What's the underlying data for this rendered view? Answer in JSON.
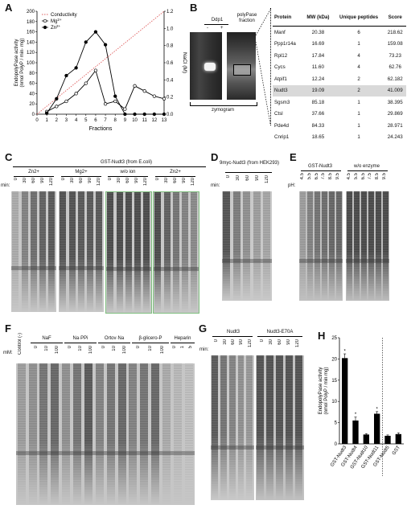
{
  "panels": {
    "A": "A",
    "B": "B",
    "C": "C",
    "D": "D",
    "E": "E",
    "F": "F",
    "G": "G",
    "H": "H"
  },
  "panelA": {
    "legend": [
      "Conductivity",
      "Mg2+",
      "Zn2+"
    ],
    "ylabel_left": "EndopolyPase activity (nmol PolyP / min· mg)",
    "ylabel_right": "NaCl (M)",
    "xlabel": "Fractions",
    "left_ticks": [
      "0",
      "20",
      "40",
      "60",
      "80",
      "100",
      "120",
      "140",
      "160",
      "180",
      "200"
    ],
    "right_ticks": [
      "0.0",
      "0.2",
      "0.4",
      "0.6",
      "0.8",
      "1.0",
      "1.2"
    ],
    "x_ticks": [
      "0",
      "1",
      "2",
      "3",
      "4",
      "5",
      "6",
      "7",
      "8",
      "9",
      "10",
      "11",
      "12",
      "13"
    ]
  },
  "chart_data": [
    {
      "type": "line",
      "title": "",
      "xlabel": "Fractions",
      "ylabel": "EndopolyPase activity (nmol PolyP / min· mg)",
      "xlim": [
        0,
        13
      ],
      "ylim": [
        0,
        200
      ],
      "y2lim": [
        0,
        1.2
      ],
      "x": [
        1,
        2,
        3,
        4,
        5,
        6,
        7,
        8,
        9,
        10,
        11,
        12,
        13
      ],
      "series": [
        {
          "name": "Conductivity",
          "axis": "right",
          "x": [
            0,
            13
          ],
          "values": [
            0,
            1.2
          ],
          "style": "dotted",
          "color": "#e06060"
        },
        {
          "name": "Mg2+",
          "axis": "left",
          "values": [
            5,
            15,
            25,
            40,
            60,
            85,
            20,
            25,
            10,
            55,
            45,
            35,
            30
          ],
          "color": "#000",
          "marker": "open"
        },
        {
          "name": "Zn2+",
          "axis": "left",
          "values": [
            2,
            30,
            75,
            90,
            140,
            160,
            135,
            35,
            0,
            0,
            0,
            0,
            0
          ],
          "color": "#000",
          "marker": "filled"
        }
      ]
    },
    {
      "type": "bar",
      "title": "",
      "ylabel": "EndopolyPase activity (nmol PolyP / min mg)",
      "ylim": [
        0,
        25
      ],
      "categories": [
        "GST-Nudt3",
        "GST-Nudt4",
        "GST-Nudt10",
        "GST-Nudt11",
        "GST-Nudt5",
        "GST"
      ],
      "values": [
        20.2,
        5.5,
        2.2,
        7.1,
        1.9,
        2.3
      ],
      "errors": [
        1.0,
        0.8,
        0.2,
        0.5,
        0.2,
        0.3
      ],
      "significant": [
        "*",
        "*",
        "",
        "*",
        "",
        ""
      ],
      "yticks": [
        "0",
        "5",
        "10",
        "15",
        "20",
        "25"
      ]
    }
  ],
  "panelB": {
    "ddp1_label": "Ddp1",
    "minus": "-",
    "plus": "+",
    "polypase_label": "polyPase fraction",
    "zymogram": "zymogram",
    "table": {
      "headers": [
        "Protein",
        "MW (kDa)",
        "Unique peptides",
        "Score"
      ],
      "rows": [
        [
          "Manf",
          "20.38",
          "6",
          "218.62"
        ],
        [
          "Ppp1r14a",
          "16.69",
          "1",
          "159.08"
        ],
        [
          "Rpl12",
          "17.84",
          "4",
          "73.23"
        ],
        [
          "Cycs",
          "11.60",
          "4",
          "62.76"
        ],
        [
          "Atpif1",
          "12.24",
          "2",
          "62.182"
        ],
        [
          "Nudt3",
          "19.09",
          "2",
          "41.009"
        ],
        [
          "Sgsm3",
          "85.18",
          "1",
          "38.395"
        ],
        [
          "Ctsl",
          "37.66",
          "1",
          "29.869"
        ],
        [
          "Pde4d",
          "84.33",
          "1",
          "28.971"
        ],
        [
          "Cnrip1",
          "18.65",
          "1",
          "24.243"
        ]
      ]
    }
  },
  "panelC": {
    "title": "GST-Nudt3 (from E.coli)",
    "groups": [
      "Zn2+",
      "Mg2+",
      "w/o ion",
      "Zn2+"
    ],
    "min_label": "min:",
    "times": [
      "0",
      "30",
      "60",
      "90",
      "120"
    ]
  },
  "panelD": {
    "title": "9myc-Nudt3 (from HEK293)",
    "min_label": "min:",
    "times": [
      "0",
      "30",
      "60",
      "90",
      "120"
    ]
  },
  "panelE": {
    "groups": [
      "GST-Nudt3",
      "w/o enzyme"
    ],
    "ph_label": "pH:",
    "phs": [
      "4.5",
      "5.5",
      "6.5",
      "7.5",
      "8.5",
      "9.5"
    ]
  },
  "panelF": {
    "control": "Control (-)",
    "groups": [
      "NaF",
      "Na·PPi",
      "Ortov·Na",
      "β-glicero-P",
      "Heparin"
    ],
    "mm_label": "mM:",
    "conc": [
      "0",
      "10",
      "100"
    ],
    "conc_hep": [
      "0",
      "1",
      "5"
    ]
  },
  "panelG": {
    "groups": [
      "Nudt3",
      "Nudt3-E70A"
    ],
    "min_label": "min:",
    "times": [
      "0",
      "30",
      "60",
      "90",
      "120"
    ]
  }
}
